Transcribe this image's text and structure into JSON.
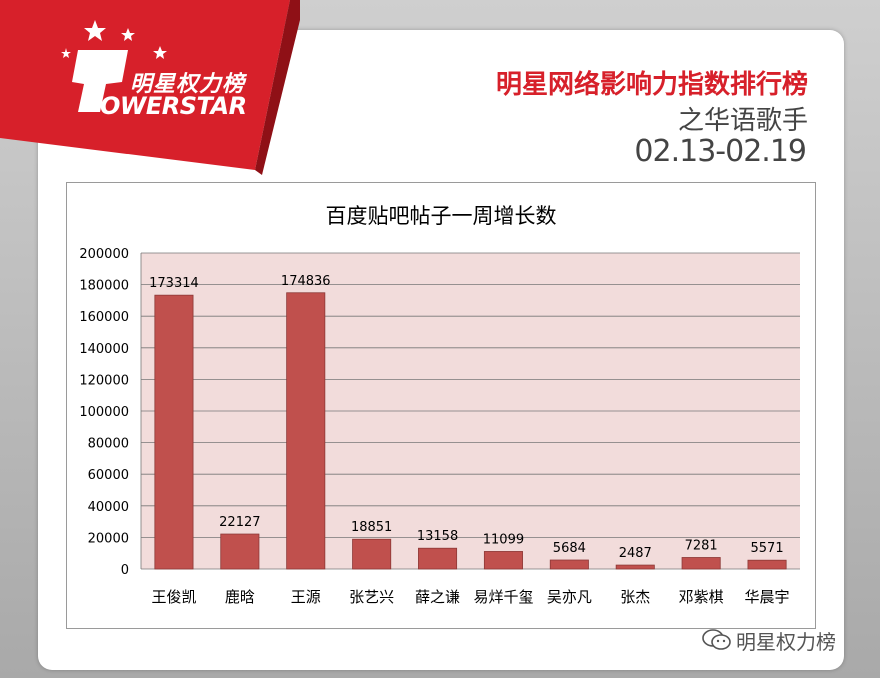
{
  "logo": {
    "cn": "明星权力榜",
    "en": "OWERSTAR"
  },
  "header": {
    "title": "明星网络影响力指数排行榜",
    "subtitle": "之华语歌手",
    "date": "02.13-02.19"
  },
  "watermark": "明星权力榜",
  "colors": {
    "brand_red": "#d7202a",
    "bar": "#c0504d",
    "plot_bg": "#f2dcdb"
  },
  "chart_data": {
    "type": "bar",
    "title": "百度贴吧帖子一周增长数",
    "categories": [
      "王俊凯",
      "鹿晗",
      "王源",
      "张艺兴",
      "薛之谦",
      "易烊千玺",
      "吴亦凡",
      "张杰",
      "邓紫棋",
      "华晨宇"
    ],
    "values": [
      173314,
      22127,
      174836,
      18851,
      13158,
      11099,
      5684,
      2487,
      7281,
      5571
    ],
    "ylim": [
      0,
      200000
    ],
    "yticks": [
      0,
      20000,
      40000,
      60000,
      80000,
      100000,
      120000,
      140000,
      160000,
      180000,
      200000
    ],
    "grid": true,
    "xlabel": "",
    "ylabel": ""
  }
}
